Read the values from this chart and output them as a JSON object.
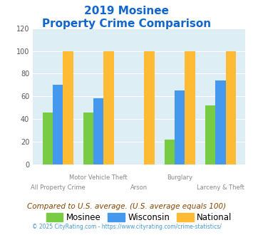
{
  "title_line1": "2019 Mosinee",
  "title_line2": "Property Crime Comparison",
  "categories": [
    "All Property Crime",
    "Motor Vehicle Theft",
    "Arson",
    "Burglary",
    "Larceny & Theft"
  ],
  "mosinee": [
    46,
    46,
    0,
    22,
    52
  ],
  "wisconsin": [
    70,
    58,
    0,
    65,
    74
  ],
  "national": [
    100,
    100,
    100,
    100,
    100
  ],
  "mosinee_color": "#77cc44",
  "wisconsin_color": "#4499ee",
  "national_color": "#ffbb33",
  "bg_color": "#ddeef5",
  "ylim": [
    0,
    120
  ],
  "yticks": [
    0,
    20,
    40,
    60,
    80,
    100,
    120
  ],
  "xlabel_top": [
    "",
    "Motor Vehicle Theft",
    "",
    "Burglary",
    ""
  ],
  "xlabel_bottom": [
    "All Property Crime",
    "",
    "Arson",
    "",
    "Larceny & Theft"
  ],
  "footnote": "Compared to U.S. average. (U.S. average equals 100)",
  "copyright": "© 2025 CityRating.com - https://www.cityrating.com/crime-statistics/",
  "title_color": "#1166cc",
  "footnote_color": "#884400",
  "copyright_color": "#4499cc"
}
